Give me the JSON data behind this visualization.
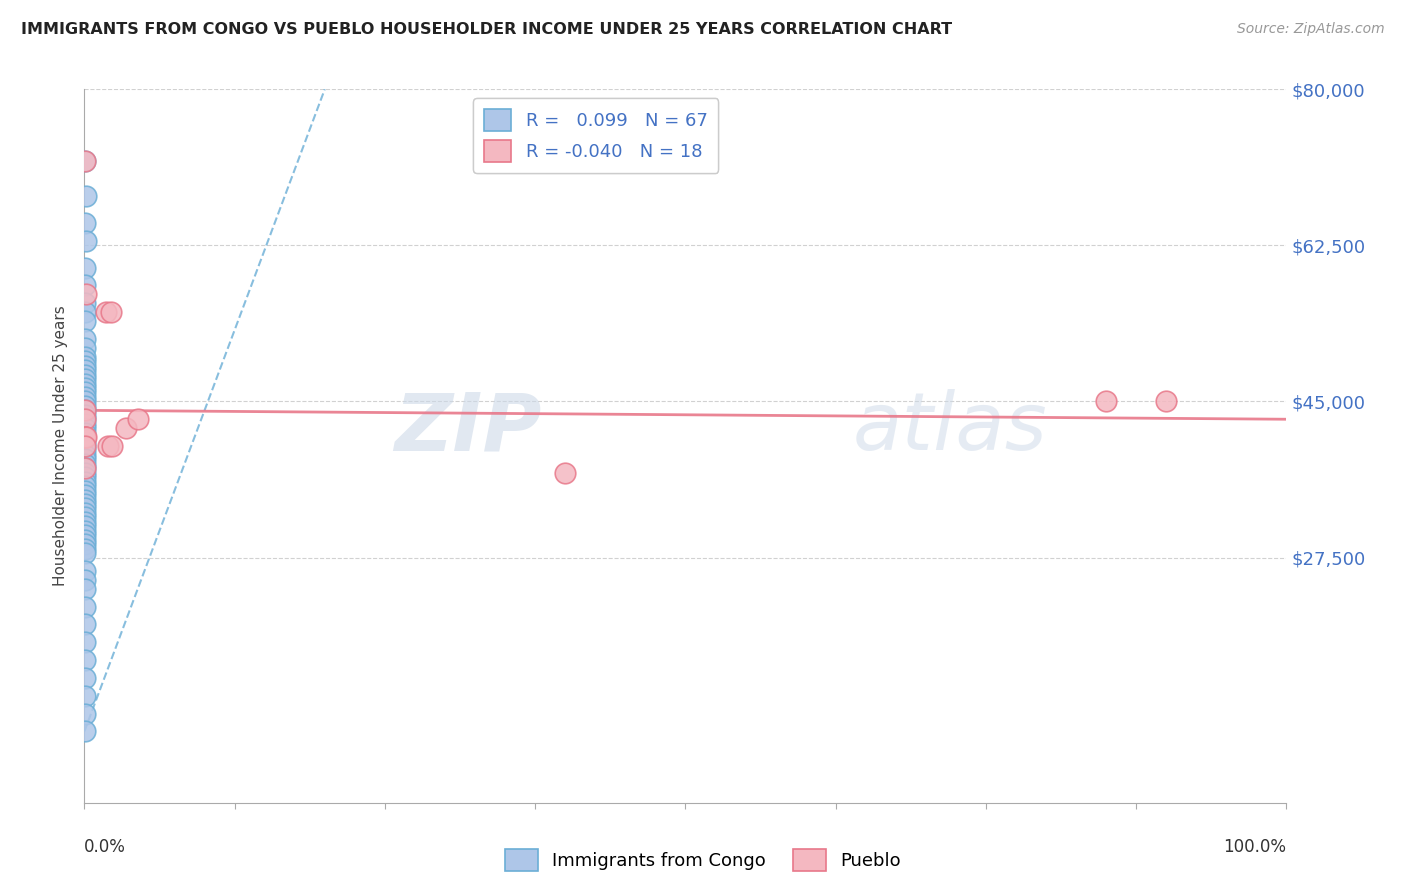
{
  "title": "IMMIGRANTS FROM CONGO VS PUEBLO HOUSEHOLDER INCOME UNDER 25 YEARS CORRELATION CHART",
  "source": "Source: ZipAtlas.com",
  "ylabel": "Householder Income Under 25 years",
  "xlim": [
    0,
    100
  ],
  "ylim": [
    0,
    80000
  ],
  "yticks": [
    27500,
    45000,
    62500,
    80000
  ],
  "ytick_labels": [
    "$27,500",
    "$45,000",
    "$62,500",
    "$80,000"
  ],
  "legend_label1": "Immigrants from Congo",
  "legend_label2": "Pueblo",
  "R1": "0.099",
  "N1": "67",
  "R2": "-0.040",
  "N2": "18",
  "blue_color": "#aec6e8",
  "blue_edge": "#6baed6",
  "pink_color": "#f4b8c1",
  "pink_edge": "#e8788a",
  "trend_blue_color": "#6baed6",
  "trend_pink_color": "#e8788a",
  "blue_dots_x": [
    0.05,
    0.1,
    0.08,
    0.12,
    0.06,
    0.05,
    0.08,
    0.07,
    0.06,
    0.09,
    0.07,
    0.06,
    0.08,
    0.09,
    0.07,
    0.06,
    0.08,
    0.07,
    0.06,
    0.09,
    0.07,
    0.06,
    0.08,
    0.09,
    0.07,
    0.06,
    0.08,
    0.07,
    0.06,
    0.09,
    0.07,
    0.06,
    0.08,
    0.07,
    0.06,
    0.05,
    0.08,
    0.07,
    0.06,
    0.05,
    0.08,
    0.07,
    0.06,
    0.05,
    0.08,
    0.07,
    0.06,
    0.05,
    0.08,
    0.07,
    0.06,
    0.05,
    0.08,
    0.07,
    0.06,
    0.05,
    0.06,
    0.05,
    0.07,
    0.06,
    0.05,
    0.06,
    0.05,
    0.06,
    0.05,
    0.06,
    0.05
  ],
  "blue_dots_y": [
    72000,
    68000,
    65000,
    63000,
    60000,
    58000,
    56000,
    55000,
    54000,
    52000,
    51000,
    50000,
    49500,
    49000,
    48500,
    48000,
    47500,
    47000,
    46500,
    46000,
    45500,
    45000,
    44500,
    44000,
    43500,
    43000,
    42500,
    42000,
    41500,
    41000,
    40500,
    40000,
    39500,
    39000,
    38500,
    38000,
    37500,
    37000,
    36500,
    36000,
    35500,
    35000,
    34500,
    34000,
    33500,
    33000,
    32500,
    32000,
    31500,
    31000,
    30500,
    30000,
    29500,
    29000,
    28500,
    28000,
    26000,
    25000,
    24000,
    22000,
    20000,
    18000,
    16000,
    14000,
    12000,
    10000,
    8000
  ],
  "pink_dots_x": [
    0.08,
    0.12,
    1.8,
    2.2,
    3.5,
    4.5,
    0.09,
    0.06,
    0.07,
    0.08,
    85.0,
    90.0,
    40.0,
    0.1,
    0.08,
    2.0,
    2.3,
    0.06
  ],
  "pink_dots_y": [
    72000,
    57000,
    55000,
    55000,
    42000,
    43000,
    44000,
    43000,
    41000,
    41000,
    45000,
    45000,
    37000,
    41000,
    40000,
    40000,
    40000,
    37500
  ],
  "blue_trend_x0": 0,
  "blue_trend_y0": 8000,
  "blue_trend_x1": 20,
  "blue_trend_y1": 80000,
  "pink_trend_x0": 0,
  "pink_trend_y0": 44000,
  "pink_trend_x1": 100,
  "pink_trend_y1": 43000
}
